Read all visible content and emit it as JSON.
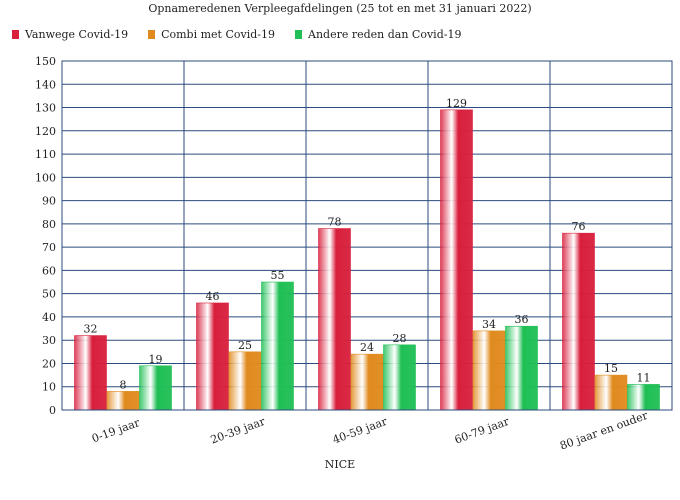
{
  "chart_data": {
    "type": "bar",
    "title": "Opnameredenen Verpleegafdelingen (25 tot en met 31 januari 2022)",
    "xlabel": "NICE",
    "ylabel": "",
    "ylim": [
      0,
      150
    ],
    "yticks": [
      0,
      10,
      20,
      30,
      40,
      50,
      60,
      70,
      80,
      90,
      100,
      110,
      120,
      130,
      140,
      150
    ],
    "grid": true,
    "legend_position": "top-left",
    "categories": [
      "0-19 jaar",
      "20-39 jaar",
      "40-59 jaar",
      "60-79 jaar",
      "80 jaar en ouder"
    ],
    "series": [
      {
        "name": "Vanwege Covid-19",
        "color": "#d81f3c",
        "values": [
          32,
          46,
          78,
          129,
          76
        ]
      },
      {
        "name": "Combi met Covid-19",
        "color": "#e08a1e",
        "values": [
          8,
          25,
          24,
          34,
          15
        ]
      },
      {
        "name": "Andere reden dan Covid-19",
        "color": "#1fbf55",
        "values": [
          19,
          55,
          28,
          36,
          11
        ]
      }
    ]
  }
}
